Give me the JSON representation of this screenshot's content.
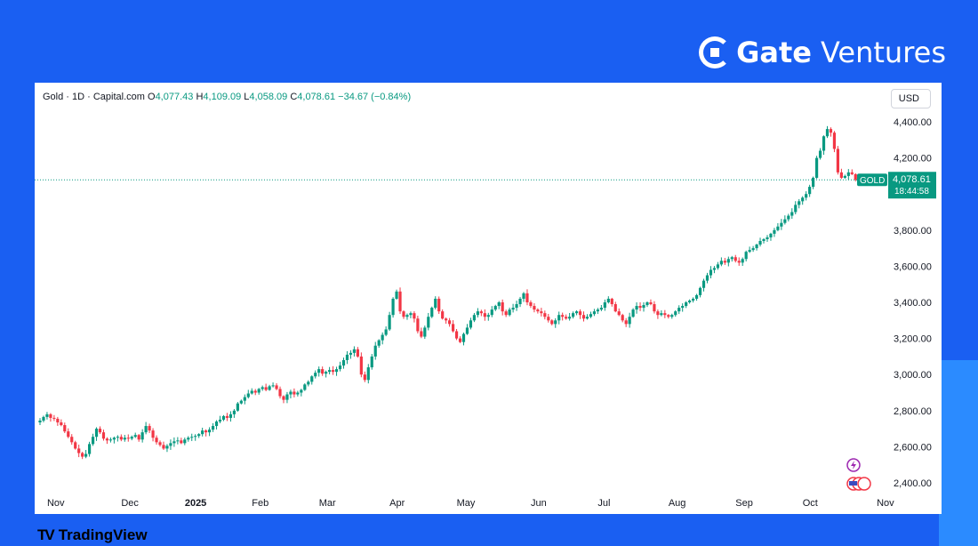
{
  "brand": {
    "name_bold": "Gate",
    "name_light": "Ventures"
  },
  "header": {
    "symbol": "Gold · 1D · Capital.com",
    "o_label": "O",
    "o_value": "4,077.43",
    "h_label": "H",
    "h_value": "4,109.09",
    "l_label": "L",
    "l_value": "4,058.09",
    "c_label": "C",
    "c_value": "4,078.61",
    "change": "−34.67 (−0.84%)"
  },
  "currency": "USD",
  "price_tag": {
    "symbol": "GOLD",
    "price": "4,078.61",
    "countdown": "18:44:58"
  },
  "footer": {
    "logo": "TV",
    "name": "TradingView"
  },
  "colors": {
    "up": "#089981",
    "down": "#f23645",
    "background": "#1a5ff2",
    "accent": "#2b8bff"
  },
  "icons": [
    "lightning-event-icon",
    "us-flag-event-icon"
  ],
  "chart_data": {
    "type": "candlestick",
    "title": "",
    "xlabel": "",
    "ylabel": "",
    "ylim": [
      2340,
      4480
    ],
    "yticks": [
      "4,400.00",
      "4,200.00",
      "3,800.00",
      "3,600.00",
      "3,400.00",
      "3,200.00",
      "3,000.00",
      "2,800.00",
      "2,600.00",
      "2,400.00"
    ],
    "ytick_values": [
      4400,
      4200,
      3800,
      3600,
      3400,
      3200,
      3000,
      2800,
      2600,
      2400
    ],
    "xticks": [
      "Nov",
      "Dec",
      "2025",
      "Feb",
      "Mar",
      "Apr",
      "May",
      "Jun",
      "Jul",
      "Aug",
      "Sep",
      "Oct",
      "Nov"
    ],
    "xtick_index": [
      1,
      22,
      40,
      59,
      78,
      98,
      117,
      138,
      157,
      177,
      196,
      215,
      236
    ],
    "last_price": 4078.61,
    "candles_close_start": 2735,
    "candle_closes": [
      2745,
      2765,
      2780,
      2760,
      2755,
      2735,
      2720,
      2685,
      2655,
      2625,
      2590,
      2565,
      2545,
      2560,
      2615,
      2655,
      2700,
      2680,
      2645,
      2635,
      2640,
      2650,
      2655,
      2640,
      2650,
      2645,
      2655,
      2665,
      2640,
      2680,
      2715,
      2690,
      2650,
      2625,
      2610,
      2590,
      2605,
      2620,
      2630,
      2635,
      2620,
      2640,
      2650,
      2655,
      2660,
      2670,
      2690,
      2680,
      2695,
      2715,
      2740,
      2750,
      2770,
      2760,
      2780,
      2800,
      2840,
      2855,
      2875,
      2895,
      2910,
      2900,
      2920,
      2930,
      2915,
      2935,
      2940,
      2920,
      2880,
      2860,
      2890,
      2905,
      2890,
      2900,
      2915,
      2945,
      2960,
      2990,
      3010,
      3030,
      3005,
      3015,
      3025,
      3015,
      3030,
      3050,
      3080,
      3110,
      3120,
      3140,
      3100,
      3000,
      2970,
      3040,
      3100,
      3160,
      3190,
      3220,
      3250,
      3330,
      3420,
      3460,
      3350,
      3320,
      3330,
      3340,
      3310,
      3240,
      3210,
      3260,
      3320,
      3370,
      3420,
      3350,
      3310,
      3300,
      3280,
      3240,
      3200,
      3180,
      3225,
      3260,
      3300,
      3330,
      3350,
      3340,
      3320,
      3330,
      3360,
      3380,
      3400,
      3350,
      3330,
      3360,
      3370,
      3390,
      3420,
      3450,
      3400,
      3380,
      3360,
      3350,
      3340,
      3320,
      3300,
      3280,
      3300,
      3330,
      3320,
      3310,
      3320,
      3340,
      3350,
      3330,
      3310,
      3320,
      3335,
      3350,
      3360,
      3370,
      3400,
      3420,
      3390,
      3350,
      3330,
      3300,
      3280,
      3320,
      3360,
      3380,
      3370,
      3385,
      3400,
      3390,
      3350,
      3330,
      3340,
      3330,
      3320,
      3330,
      3350,
      3370,
      3380,
      3400,
      3410,
      3420,
      3440,
      3480,
      3520,
      3550,
      3580,
      3590,
      3610,
      3630,
      3620,
      3640,
      3650,
      3630,
      3620,
      3640,
      3680,
      3690,
      3700,
      3720,
      3740,
      3750,
      3760,
      3780,
      3800,
      3820,
      3840,
      3860,
      3880,
      3900,
      3940,
      3960,
      3980,
      4000,
      4040,
      4090,
      4200,
      4240,
      4320,
      4360,
      4340,
      4250,
      4120,
      4090,
      4100,
      4120,
      4110,
      4078.61
    ]
  }
}
